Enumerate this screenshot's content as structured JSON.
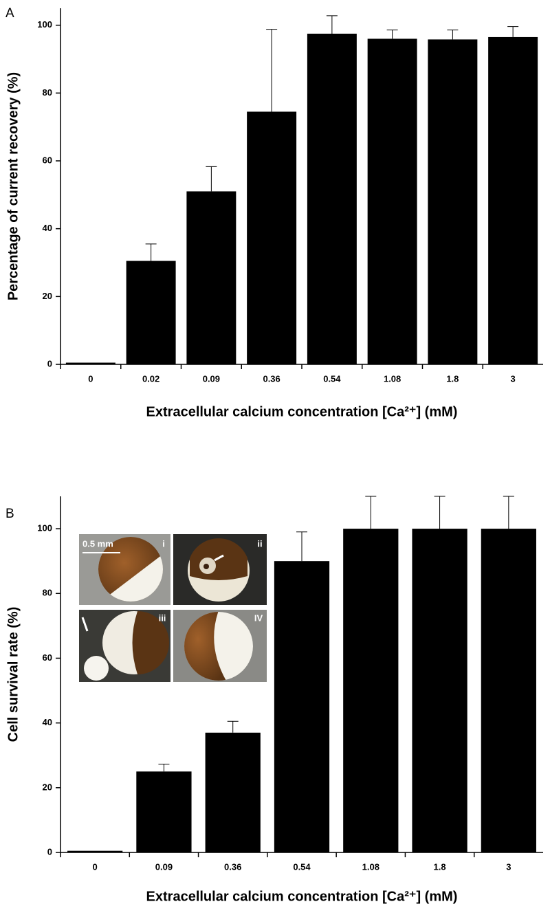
{
  "chart_data": [
    {
      "type": "bar",
      "panel": "A",
      "ylabel": "Percentage of current recovery (%)",
      "xlabel": "Extracellular calcium concentration [Ca²⁺] (mM)",
      "categories": [
        "0",
        "0.02",
        "0.09",
        "0.36",
        "0.54",
        "1.08",
        "1.8",
        "3"
      ],
      "values": [
        0.5,
        30.5,
        51,
        74.5,
        97.5,
        96,
        95.8,
        96.5
      ],
      "errors": [
        0,
        5,
        7.3,
        24.3,
        5.3,
        2.6,
        2.8,
        3.1
      ],
      "color": "#000000",
      "ylim": [
        0,
        105
      ],
      "yticks": [
        0,
        20,
        40,
        60,
        80,
        100
      ]
    },
    {
      "type": "bar",
      "panel": "B",
      "ylabel": "Cell survival rate (%)",
      "xlabel": "Extracellular calcium concentration [Ca²⁺] (mM)",
      "categories": [
        "0",
        "0.09",
        "0.36",
        "0.54",
        "1.08",
        "1.8",
        "3"
      ],
      "values": [
        0.5,
        25,
        37,
        90,
        100,
        100,
        100
      ],
      "errors": [
        0,
        2.3,
        3.5,
        9,
        10,
        10,
        10
      ],
      "color": "#000000",
      "ylim": [
        0,
        110
      ],
      "yticks": [
        0,
        20,
        40,
        60,
        80,
        100
      ],
      "inset": {
        "scale_bar": "0.5 mm",
        "labels": [
          "i",
          "ii",
          "iii",
          "IV"
        ]
      }
    }
  ]
}
